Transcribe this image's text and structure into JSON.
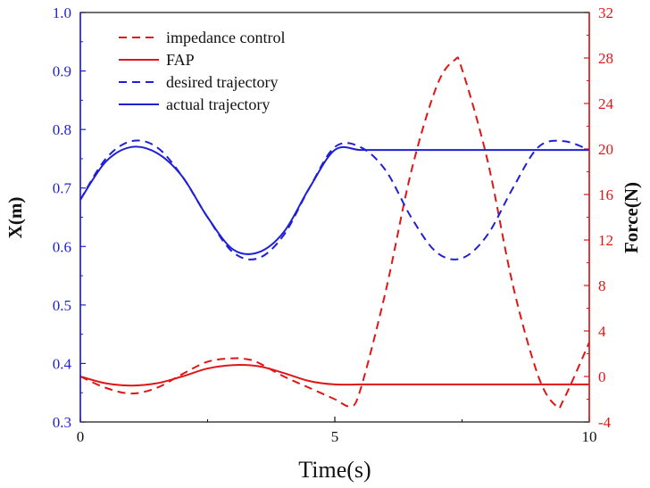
{
  "chart_data": {
    "type": "line",
    "xlabel": "Time(s)",
    "ylabel": "X(m)",
    "y2label": "Force(N)",
    "xlim": [
      0,
      10
    ],
    "ylim": [
      0.3,
      1.0
    ],
    "y2lim": [
      -4,
      32
    ],
    "x_ticks": [
      "0",
      "5",
      "10"
    ],
    "y_ticks": [
      "0.3",
      "0.4",
      "0.5",
      "0.6",
      "0.7",
      "0.8",
      "0.9",
      "1.0"
    ],
    "y2_ticks": [
      "-4",
      "0",
      "4",
      "8",
      "12",
      "16",
      "20",
      "24",
      "28",
      "32"
    ],
    "grid": false,
    "legend_position": "top-left",
    "colors": {
      "position": "#1f1fd6",
      "force": "#e01616",
      "axis": "#111111"
    },
    "series": [
      {
        "name": "impedance control",
        "axis": "right",
        "style": "dashed",
        "color": "#e01616",
        "x": [
          0,
          0.5,
          1.0,
          1.5,
          2.0,
          2.5,
          3.0,
          3.3,
          3.5,
          4.0,
          4.5,
          5.0,
          5.3,
          5.5,
          6.0,
          6.5,
          7.0,
          7.35,
          7.5,
          8.0,
          8.5,
          9.0,
          9.35,
          9.5,
          10.0
        ],
        "y": [
          0,
          -1.0,
          -1.5,
          -1.0,
          0.2,
          1.3,
          1.6,
          1.5,
          1.2,
          0.0,
          -1.0,
          -2.0,
          -2.6,
          -1.2,
          7.5,
          18.0,
          25.5,
          27.8,
          27.0,
          19.0,
          8.0,
          0.0,
          -2.6,
          -2.0,
          3.0
        ]
      },
      {
        "name": "FAP",
        "axis": "right",
        "style": "solid",
        "color": "#e01616",
        "x": [
          0,
          0.5,
          1.0,
          1.5,
          2.0,
          2.5,
          3.0,
          3.5,
          4.0,
          4.5,
          5.0,
          5.5,
          6.0,
          7.0,
          8.0,
          9.0,
          10.0
        ],
        "y": [
          0,
          -0.6,
          -0.8,
          -0.6,
          0.0,
          0.7,
          1.0,
          0.9,
          0.3,
          -0.4,
          -0.7,
          -0.7,
          -0.7,
          -0.7,
          -0.7,
          -0.7,
          -0.7
        ]
      },
      {
        "name": "desired trajectory",
        "axis": "left",
        "style": "dashed",
        "color": "#1f1fd6",
        "x": [
          0,
          0.5,
          1.0,
          1.5,
          2.0,
          2.5,
          3.0,
          3.5,
          4.0,
          4.5,
          5.0,
          5.5,
          6.0,
          6.5,
          7.0,
          7.5,
          8.0,
          8.5,
          9.0,
          9.5,
          10.0
        ],
        "y": [
          0.68,
          0.75,
          0.78,
          0.77,
          0.72,
          0.65,
          0.59,
          0.58,
          0.62,
          0.7,
          0.77,
          0.77,
          0.73,
          0.65,
          0.59,
          0.58,
          0.62,
          0.7,
          0.77,
          0.78,
          0.765
        ]
      },
      {
        "name": "actual trajectory",
        "axis": "left",
        "style": "solid",
        "color": "#1f1fd6",
        "x": [
          0,
          0.5,
          1.0,
          1.5,
          2.0,
          2.5,
          3.0,
          3.5,
          4.0,
          4.5,
          5.0,
          5.5,
          6.0,
          7.0,
          8.0,
          9.0,
          10.0
        ],
        "y": [
          0.68,
          0.745,
          0.77,
          0.76,
          0.72,
          0.65,
          0.595,
          0.59,
          0.625,
          0.7,
          0.765,
          0.765,
          0.765,
          0.765,
          0.765,
          0.765,
          0.765
        ]
      }
    ]
  }
}
